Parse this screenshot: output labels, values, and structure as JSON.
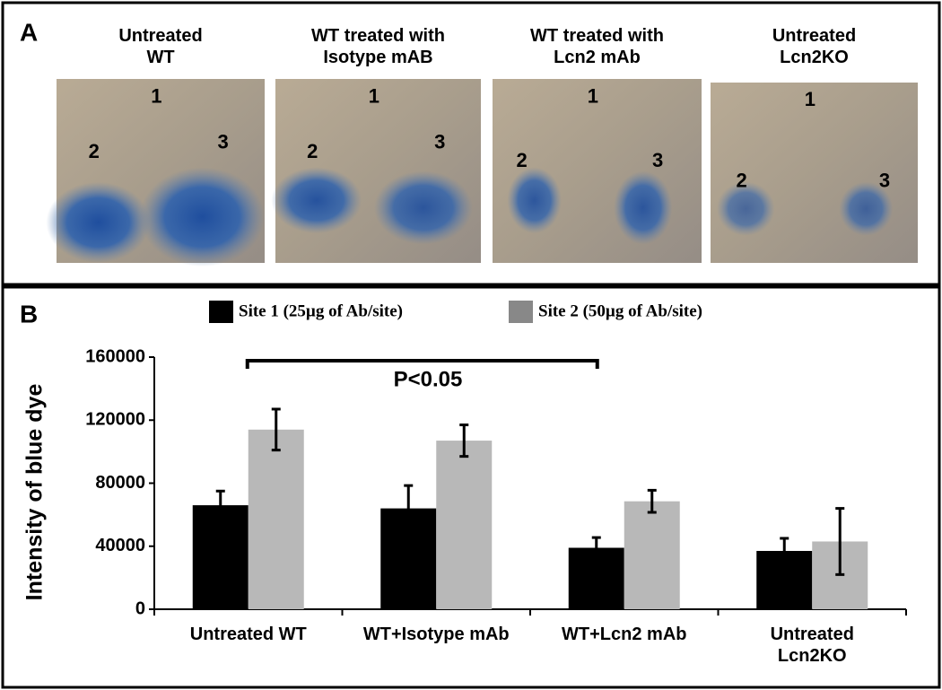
{
  "panel_a": {
    "label": "A",
    "images": [
      {
        "title": "Untreated\nWT",
        "sites": [
          "1",
          "2",
          "3"
        ]
      },
      {
        "title": "WT treated with\nIsotype  mAB",
        "sites": [
          "1",
          "2",
          "3"
        ]
      },
      {
        "title": "WT treated with\nLcn2 mAb",
        "sites": [
          "1",
          "2",
          "3"
        ]
      },
      {
        "title": "Untreated\nLcn2KO",
        "sites": [
          "1",
          "2",
          "3"
        ]
      }
    ]
  },
  "chart_data": {
    "type": "bar",
    "panel_label": "B",
    "y_label": "Intensity of blue dye",
    "categories": [
      "Untreated WT",
      "WT+Isotype mAb",
      "WT+Lcn2 mAb",
      "Untreated\nLcn2KO"
    ],
    "series": [
      {
        "name": "Site 1 (25µg of Ab/site)",
        "color": "#000000",
        "values": [
          66000,
          64000,
          39000,
          37000
        ],
        "errors": [
          9000,
          14500,
          6500,
          8000
        ]
      },
      {
        "name": "Site 2 (50µg of Ab/site)",
        "color": "#b8b8b8",
        "values": [
          114000,
          107000,
          68500,
          43000
        ],
        "errors": [
          13000,
          10000,
          7000,
          21000
        ]
      }
    ],
    "ylim": [
      0,
      160000
    ],
    "yticks": [
      0,
      40000,
      80000,
      120000,
      160000
    ],
    "annotation": "P<0.05",
    "legend_position": "top"
  }
}
